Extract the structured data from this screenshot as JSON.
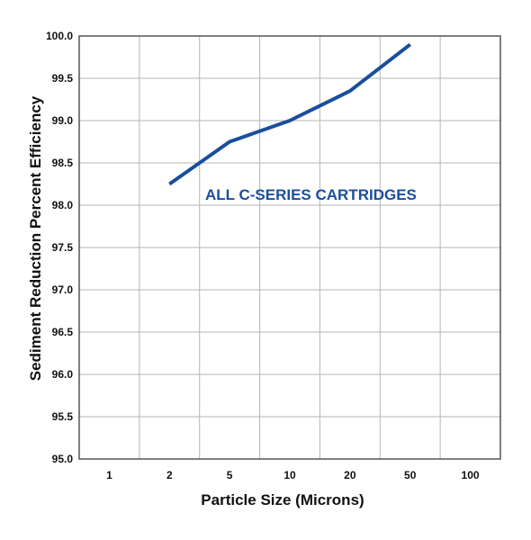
{
  "chart_data": {
    "type": "line",
    "x": [
      "1",
      "2",
      "5",
      "10",
      "20",
      "50",
      "100"
    ],
    "series": [
      {
        "name": "ALL C-SERIES CARTRIDGES",
        "x": [
          "2",
          "5",
          "10",
          "20",
          "50"
        ],
        "values": [
          98.25,
          98.75,
          99.0,
          99.35,
          99.9
        ],
        "color": "#1a4e9c"
      }
    ],
    "xlabel": "Particle Size (Microns)",
    "ylabel": "Sediment Reduction Percent Efficiency",
    "ylim": [
      95.0,
      100.0
    ],
    "yticks": [
      "95.0",
      "95.5",
      "96.0",
      "96.5",
      "97.0",
      "97.5",
      "98.0",
      "98.5",
      "99.0",
      "99.5",
      "100.0"
    ],
    "annotation": "ALL C-SERIES CARTRIDGES",
    "grid": true,
    "legend": "none"
  }
}
